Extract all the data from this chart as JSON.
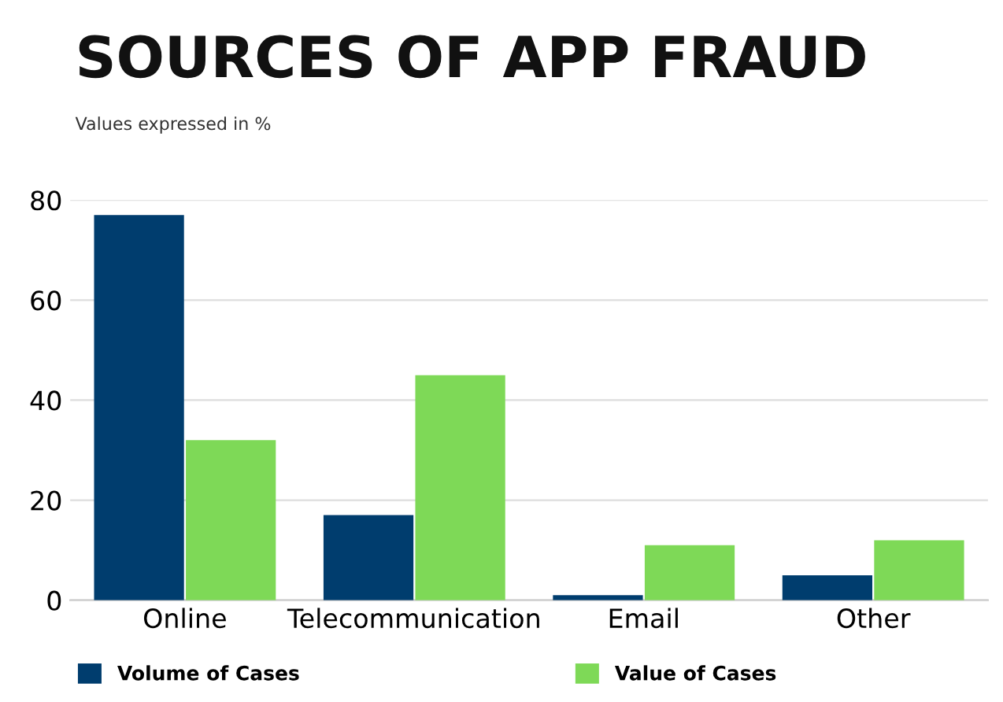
{
  "chart_data": {
    "type": "bar",
    "title": "SOURCES OF APP FRAUD",
    "subtitle": "Values expressed in %",
    "categories": [
      "Online",
      "Telecommunication",
      "Email",
      "Other"
    ],
    "series": [
      {
        "name": "Volume of Cases",
        "color": "#003d6e",
        "values": [
          77,
          17,
          1,
          5
        ]
      },
      {
        "name": "Value of Cases",
        "color": "#7ed957",
        "values": [
          32,
          45,
          11,
          12
        ]
      }
    ],
    "ylim": [
      0,
      80
    ],
    "yticks": [
      0,
      20,
      40,
      60,
      80
    ],
    "grid": "y",
    "legend": "bottom"
  }
}
